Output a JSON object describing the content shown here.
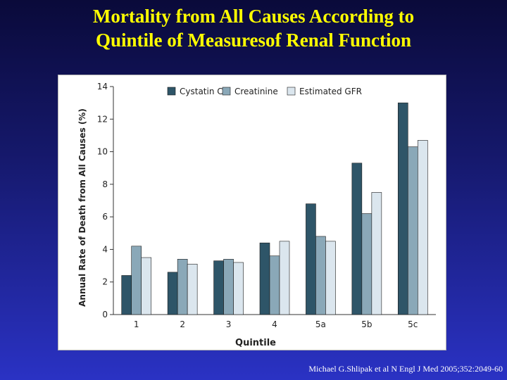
{
  "slide": {
    "title_line1": "Mortality from All Causes According to",
    "title_line2": "Quintile of Measuresof Renal Function",
    "citation": "Michael G.Shlipak et al N Engl J Med 2005;352:2049-60"
  },
  "chart_data": {
    "type": "bar",
    "xlabel": "Quintile",
    "ylabel": "Annual Rate of Death from All Causes (%)",
    "ylim": [
      0,
      14
    ],
    "yticks": [
      0,
      2,
      4,
      6,
      8,
      10,
      12,
      14
    ],
    "categories": [
      "1",
      "2",
      "3",
      "4",
      "5a",
      "5b",
      "5c"
    ],
    "legend_position": "top",
    "grid": false,
    "series": [
      {
        "name": "Cystatin C",
        "color": "#2e5568",
        "values": [
          2.4,
          2.6,
          3.3,
          4.4,
          6.8,
          9.3,
          13.0
        ]
      },
      {
        "name": "Creatinine",
        "color": "#8aa8b8",
        "values": [
          4.2,
          3.4,
          3.4,
          3.6,
          4.8,
          6.2,
          10.3
        ]
      },
      {
        "name": "Estimated GFR",
        "color": "#dbe6ee",
        "values": [
          3.5,
          3.1,
          3.2,
          4.5,
          4.5,
          7.5,
          10.7
        ]
      }
    ]
  }
}
